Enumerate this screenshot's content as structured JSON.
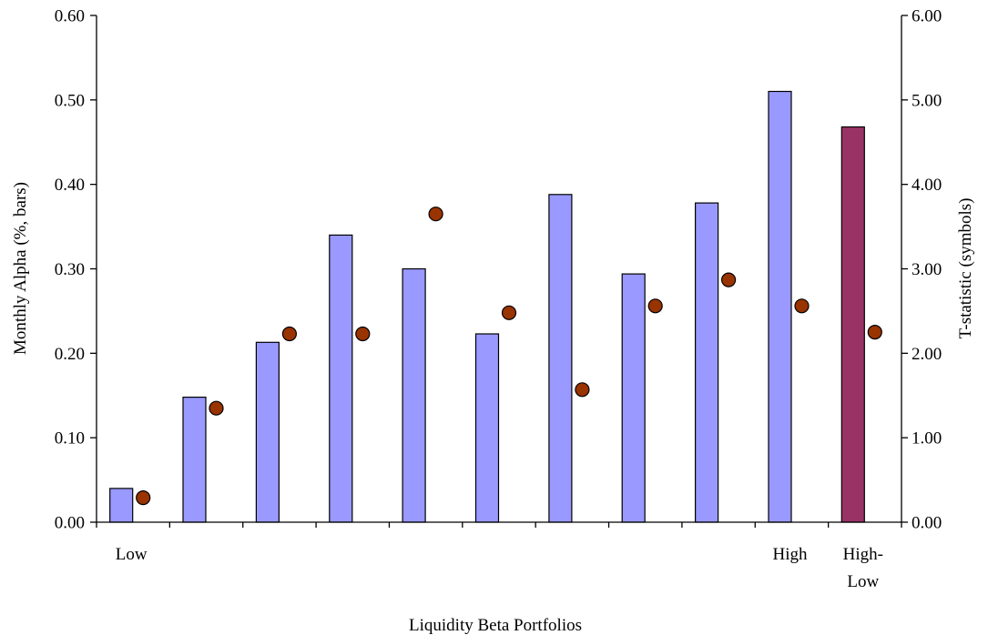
{
  "chart_data": {
    "type": "bar",
    "categories": [
      "Low",
      "",
      "",
      "",
      "",
      "",
      "",
      "",
      "",
      "High",
      "High-Low"
    ],
    "category_label_lines": [
      [
        "Low"
      ],
      [],
      [],
      [],
      [],
      [],
      [],
      [],
      [],
      [
        "High"
      ],
      [
        "High-",
        "Low"
      ]
    ],
    "series": [
      {
        "axis": "left",
        "kind": "bar",
        "values": [
          0.04,
          0.148,
          0.213,
          0.34,
          0.3,
          0.223,
          0.388,
          0.294,
          0.378,
          0.51,
          0.468
        ],
        "colors": [
          "#9999ff",
          "#9999ff",
          "#9999ff",
          "#9999ff",
          "#9999ff",
          "#9999ff",
          "#9999ff",
          "#9999ff",
          "#9999ff",
          "#9999ff",
          "#993366"
        ]
      },
      {
        "axis": "right",
        "kind": "scatter",
        "values": [
          0.29,
          1.35,
          2.23,
          2.23,
          3.65,
          2.48,
          1.57,
          2.56,
          2.87,
          2.56,
          2.25
        ],
        "color": "#993300"
      }
    ],
    "xlabel": "Liquidity Beta Portfolios",
    "ylabel": "Monthly Alpha (%, bars)",
    "y2label": "T-statistic (symbols)",
    "ylim": [
      0,
      0.6
    ],
    "y2lim": [
      0,
      6
    ],
    "yticks": [
      "0.00",
      "0.10",
      "0.20",
      "0.30",
      "0.40",
      "0.50",
      "0.60"
    ],
    "y2ticks": [
      "0.00",
      "1.00",
      "2.00",
      "3.00",
      "4.00",
      "5.00",
      "6.00"
    ],
    "grid": false,
    "legend": "none"
  }
}
